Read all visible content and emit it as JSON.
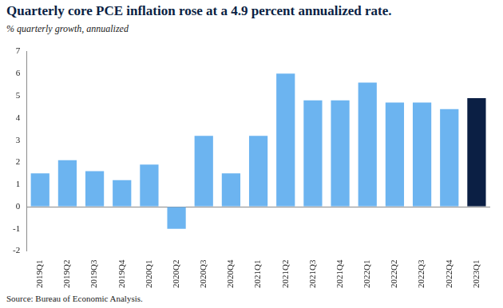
{
  "chart_data": {
    "type": "bar",
    "title": "Quarterly core PCE inflation rose at a 4.9 percent annualized rate.",
    "subtitle": "% quarterly growth, annualized",
    "source": "Source: Bureau of Economic Analysis.",
    "categories": [
      "2019Q1",
      "2019Q2",
      "2019Q3",
      "2019Q4",
      "2020Q1",
      "2020Q2",
      "2020Q3",
      "2020Q4",
      "2021Q1",
      "2021Q2",
      "2021Q3",
      "2021Q4",
      "2022Q1",
      "2022Q2",
      "2022Q3",
      "2022Q4",
      "2023Q1"
    ],
    "values": [
      1.5,
      2.1,
      1.6,
      1.2,
      1.9,
      -1.0,
      3.2,
      1.5,
      3.2,
      6.0,
      4.8,
      4.8,
      5.6,
      4.7,
      4.7,
      4.4,
      4.9
    ],
    "colors": [
      "#6cb4f0",
      "#6cb4f0",
      "#6cb4f0",
      "#6cb4f0",
      "#6cb4f0",
      "#6cb4f0",
      "#6cb4f0",
      "#6cb4f0",
      "#6cb4f0",
      "#6cb4f0",
      "#6cb4f0",
      "#6cb4f0",
      "#6cb4f0",
      "#6cb4f0",
      "#6cb4f0",
      "#6cb4f0",
      "#0b1f44"
    ],
    "ylim": [
      -2,
      7
    ],
    "yticks": [
      -2,
      -1,
      0,
      1,
      2,
      3,
      4,
      5,
      6,
      7
    ],
    "grid": false
  }
}
